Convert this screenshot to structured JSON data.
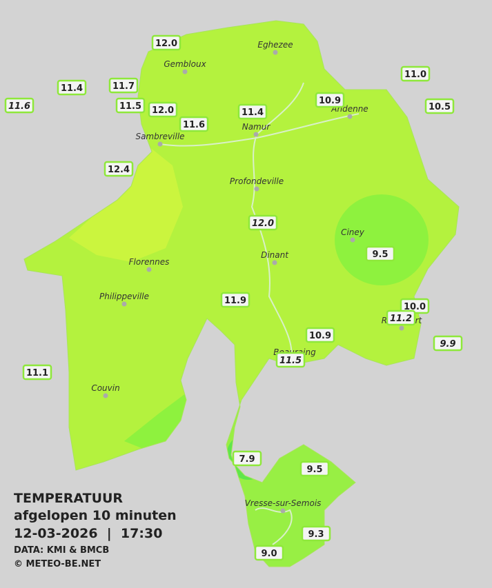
{
  "legend": {
    "title": "TEMPERATUUR",
    "subtitle": "afgelopen 10 minuten",
    "datetime": "12-03-2026  |  17:30",
    "source": "DATA: KMI & BMCB",
    "copyright": "© METEO-BE.NET"
  },
  "places": [
    "Eghezee",
    "Gembloux",
    "Andenne",
    "Namur",
    "Sambreville",
    "Profondeville",
    "Ciney",
    "Dinant",
    "Florennes",
    "Philippeville",
    "Rochefort",
    "Beauraing",
    "Couvin",
    "Vresse-sur-Semois"
  ],
  "stations": [
    "12.0",
    "11.4",
    "11.7",
    "11.6",
    "11.5",
    "12.0",
    "11.6",
    "11.4",
    "10.9",
    "11.0",
    "10.5",
    "12.4",
    "12.0",
    "9.5",
    "11.9",
    "10.0",
    "11.2",
    "10.9",
    "11.5",
    "9.9",
    "11.1",
    "7.9",
    "9.5",
    "9.3",
    "9.0"
  ]
}
